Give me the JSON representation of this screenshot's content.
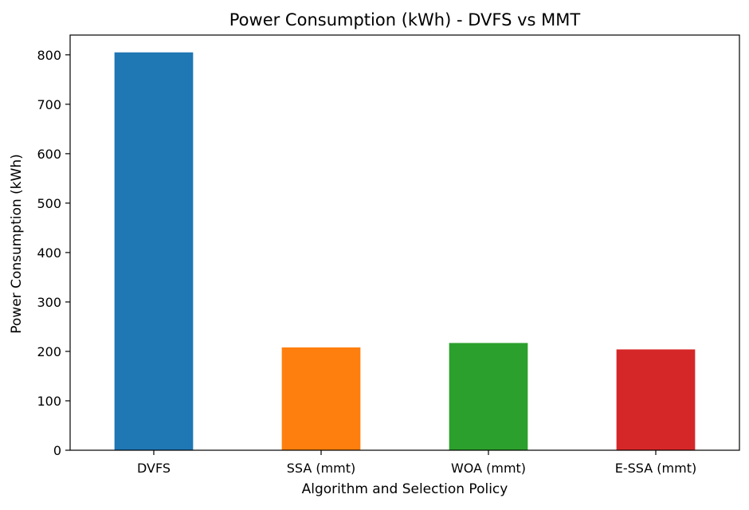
{
  "chart_data": {
    "type": "bar",
    "title": "Power Consumption (kWh) - DVFS vs MMT",
    "xlabel": "Algorithm and Selection Policy",
    "ylabel": "Power Consumption (kWh)",
    "categories": [
      "DVFS",
      "SSA (mmt)",
      "WOA (mmt)",
      "E-SSA (mmt)"
    ],
    "values": [
      805,
      208,
      217,
      204
    ],
    "colors": [
      "#1f77b4",
      "#ff7f0e",
      "#2ca02c",
      "#d62728"
    ],
    "ylim": [
      0,
      840
    ],
    "yticks": [
      0,
      100,
      200,
      300,
      400,
      500,
      600,
      700,
      800
    ],
    "grid": false,
    "legend": "none"
  }
}
